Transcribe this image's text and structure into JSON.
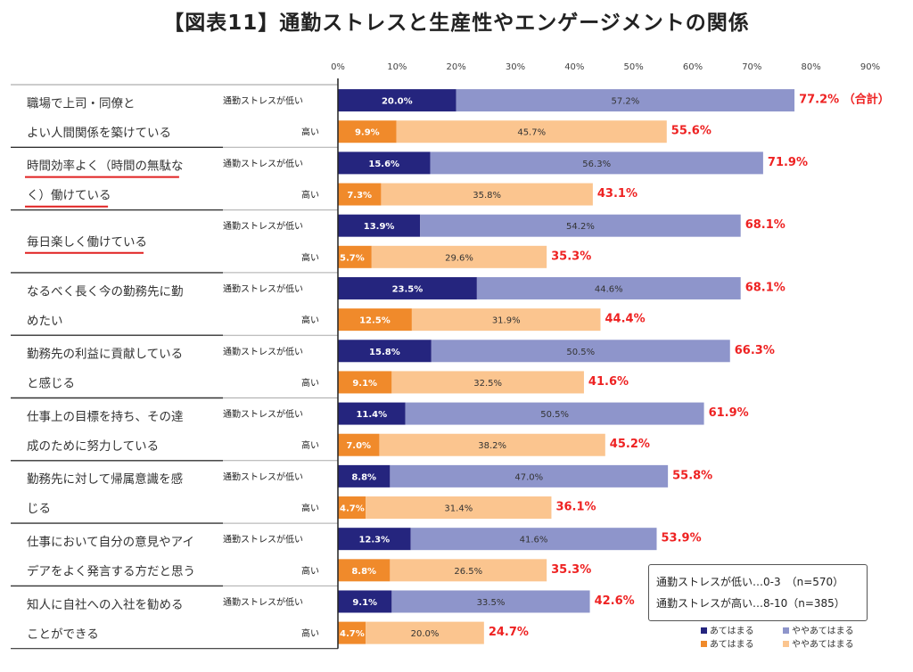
{
  "title": "【図表11】通勤ストレスと生産性やエンゲージメントの関係",
  "colors": {
    "low_strong": "#25257e",
    "low_some": "#8e95cb",
    "high_strong": "#f08a2b",
    "high_some": "#fbc58f",
    "total": "#ee2222"
  },
  "chart_data": {
    "type": "bar",
    "orientation": "horizontal",
    "stacked": true,
    "x_ticks": [
      "0%",
      "10%",
      "20%",
      "30%",
      "40%",
      "50%",
      "60%",
      "70%",
      "80%",
      "90%"
    ],
    "xlim": [
      0,
      90
    ],
    "groups": [
      "通勤ストレスが低い",
      "高い"
    ],
    "total_suffix_first": "（合計）",
    "categories": [
      {
        "label": [
          "職場で上司・同僚と",
          "よい人間関係を築けている"
        ],
        "underline": false,
        "low": {
          "strong": 20.0,
          "some": 57.2,
          "total": 77.2
        },
        "high": {
          "strong": 9.9,
          "some": 45.7,
          "total": 55.6
        }
      },
      {
        "label": [
          "時間効率よく（時間の無駄な",
          "く）働けている"
        ],
        "underline": true,
        "low": {
          "strong": 15.6,
          "some": 56.3,
          "total": 71.9
        },
        "high": {
          "strong": 7.3,
          "some": 35.8,
          "total": 43.1
        }
      },
      {
        "label": [
          "毎日楽しく働けている"
        ],
        "underline": true,
        "low": {
          "strong": 13.9,
          "some": 54.2,
          "total": 68.1
        },
        "high": {
          "strong": 5.7,
          "some": 29.6,
          "total": 35.3
        }
      },
      {
        "label": [
          "なるべく長く今の勤務先に勤",
          "めたい"
        ],
        "underline": false,
        "low": {
          "strong": 23.5,
          "some": 44.6,
          "total": 68.1
        },
        "high": {
          "strong": 12.5,
          "some": 31.9,
          "total": 44.4
        }
      },
      {
        "label": [
          "勤務先の利益に貢献している",
          "と感じる"
        ],
        "underline": false,
        "low": {
          "strong": 15.8,
          "some": 50.5,
          "total": 66.3
        },
        "high": {
          "strong": 9.1,
          "some": 32.5,
          "total": 41.6
        }
      },
      {
        "label": [
          "仕事上の目標を持ち、その達",
          "成のために努力している"
        ],
        "underline": false,
        "low": {
          "strong": 11.4,
          "some": 50.5,
          "total": 61.9
        },
        "high": {
          "strong": 7.0,
          "some": 38.2,
          "total": 45.2
        }
      },
      {
        "label": [
          "勤務先に対して帰属意識を感",
          "じる"
        ],
        "underline": false,
        "low": {
          "strong": 8.8,
          "some": 47.0,
          "total": 55.8
        },
        "high": {
          "strong": 4.7,
          "some": 31.4,
          "total": 36.1
        }
      },
      {
        "label": [
          "仕事において自分の意見やアイ",
          "デアをよく発言する方だと思う"
        ],
        "underline": false,
        "low": {
          "strong": 12.3,
          "some": 41.6,
          "total": 53.9
        },
        "high": {
          "strong": 8.8,
          "some": 26.5,
          "total": 35.3
        }
      },
      {
        "label": [
          "知人に自社への入社を勧める",
          "ことができる"
        ],
        "underline": false,
        "low": {
          "strong": 9.1,
          "some": 33.5,
          "total": 42.6
        },
        "high": {
          "strong": 4.7,
          "some": 20.0,
          "total": 24.7
        }
      }
    ]
  },
  "info": {
    "low_line": "通勤ストレスが低い…0-3　（n=570）",
    "high_line": "通勤ストレスが高い…8-10（n=385）"
  },
  "legend": {
    "low_strong": "あてはまる",
    "low_some": "ややあてはまる",
    "high_strong": "あてはまる",
    "high_some": "ややあてはまる"
  }
}
